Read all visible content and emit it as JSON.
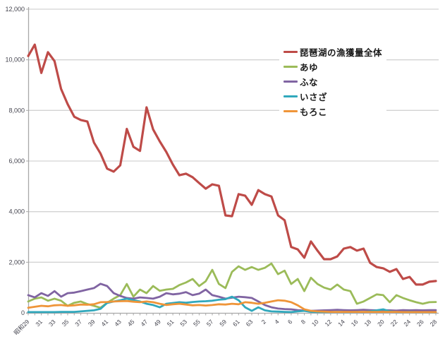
{
  "chart_data": {
    "type": "line",
    "title": "",
    "grid": true,
    "legend_position": "inside-top-right",
    "x_axis": {
      "points": 63,
      "label_every": 2,
      "tick_labels": [
        "昭和29",
        "31",
        "33",
        "35",
        "37",
        "39",
        "41",
        "43",
        "45",
        "47",
        "49",
        "51",
        "53",
        "55",
        "57",
        "59",
        "61",
        "63",
        "2",
        "4",
        "6",
        "8",
        "10",
        "12",
        "14",
        "16",
        "18",
        "20",
        "22",
        "24",
        "26",
        "28"
      ]
    },
    "y_axis": {
      "min": 0,
      "max": 12000,
      "step": 2000,
      "tick_labels": [
        "0",
        "2,000",
        "4,000",
        "6,000",
        "8,000",
        "10,000",
        "12,000"
      ]
    },
    "series": [
      {
        "name": "琵琶湖の漁獲量全体",
        "color": "#BE4B48",
        "width": 3.2,
        "values": [
          10150,
          10600,
          9480,
          10300,
          9950,
          8850,
          8250,
          7750,
          7620,
          7560,
          6730,
          6300,
          5700,
          5580,
          5830,
          7270,
          6560,
          6400,
          8120,
          7250,
          6780,
          6360,
          5860,
          5440,
          5500,
          5360,
          5130,
          4910,
          5080,
          5020,
          3850,
          3820,
          4690,
          4630,
          4270,
          4850,
          4690,
          4600,
          3850,
          3660,
          2600,
          2510,
          2180,
          2820,
          2460,
          2120,
          2120,
          2230,
          2540,
          2600,
          2460,
          2540,
          1980,
          1810,
          1760,
          1620,
          1730,
          1340,
          1420,
          1120,
          1120,
          1230,
          1260
        ]
      },
      {
        "name": "あゆ",
        "color": "#9BBB59",
        "width": 2.8,
        "values": [
          450,
          560,
          610,
          480,
          560,
          480,
          280,
          400,
          450,
          350,
          280,
          200,
          400,
          560,
          700,
          1140,
          640,
          920,
          780,
          1060,
          870,
          920,
          950,
          1100,
          1200,
          1340,
          1060,
          1250,
          1700,
          1140,
          980,
          1620,
          1840,
          1700,
          1810,
          1700,
          1780,
          1950,
          1530,
          1670,
          1140,
          1340,
          860,
          1390,
          1140,
          1000,
          920,
          1120,
          920,
          860,
          360,
          450,
          590,
          730,
          700,
          420,
          700,
          590,
          500,
          420,
          360,
          420,
          430
        ]
      },
      {
        "name": "ふな",
        "color": "#8064A2",
        "width": 2.8,
        "values": [
          700,
          610,
          780,
          670,
          860,
          640,
          780,
          800,
          860,
          920,
          980,
          1150,
          1060,
          780,
          670,
          590,
          560,
          610,
          590,
          560,
          640,
          780,
          730,
          760,
          820,
          700,
          760,
          920,
          700,
          640,
          560,
          600,
          640,
          620,
          590,
          450,
          310,
          220,
          170,
          150,
          140,
          110,
          90,
          80,
          90,
          100,
          110,
          120,
          110,
          100,
          110,
          120,
          110,
          100,
          110,
          100,
          90,
          110,
          100,
          110,
          100,
          110,
          110
        ]
      },
      {
        "name": "いさざ",
        "color": "#31A8BC",
        "width": 2.8,
        "values": [
          30,
          30,
          30,
          30,
          30,
          40,
          40,
          40,
          60,
          80,
          100,
          160,
          390,
          450,
          500,
          560,
          500,
          450,
          360,
          310,
          220,
          360,
          390,
          420,
          400,
          430,
          450,
          460,
          480,
          520,
          540,
          640,
          500,
          220,
          80,
          220,
          100,
          60,
          50,
          40,
          30,
          60,
          80,
          40,
          30,
          30,
          30,
          40,
          30,
          30,
          40,
          30,
          60,
          100,
          140,
          60,
          30,
          30,
          40,
          30,
          30,
          30,
          30
        ]
      },
      {
        "name": "もろこ",
        "color": "#EF9539",
        "width": 2.8,
        "values": [
          200,
          240,
          280,
          260,
          300,
          310,
          280,
          300,
          330,
          320,
          340,
          420,
          430,
          450,
          460,
          470,
          440,
          420,
          450,
          420,
          360,
          310,
          340,
          360,
          330,
          300,
          310,
          290,
          310,
          340,
          330,
          360,
          340,
          420,
          400,
          360,
          400,
          450,
          500,
          480,
          420,
          300,
          140,
          80,
          60,
          50,
          40,
          40,
          40,
          40,
          40,
          40,
          40,
          40,
          40,
          40,
          40,
          30,
          30,
          30,
          30,
          30,
          30
        ]
      }
    ],
    "colors": {
      "grid": "#D3D3D3",
      "axis": "#A8A8A8",
      "tick_label": "#45454F",
      "background": "#FFFFFF"
    }
  }
}
